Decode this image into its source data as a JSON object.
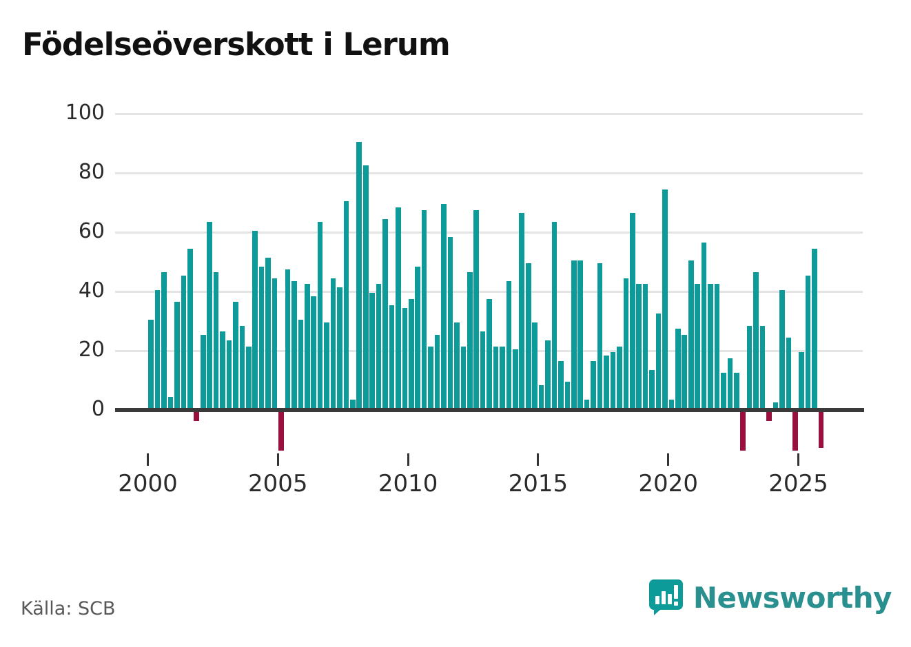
{
  "title": "Födelseöverskott i Lerum",
  "source": "Källa: SCB",
  "logo": {
    "text": "Newsworthy"
  },
  "colors": {
    "positive_bar": "#0c9b99",
    "negative_bar": "#990f3d",
    "logo_teal": "#2a8f8f",
    "grid": "#e4e4e4",
    "zero_line": "#3a3a3a"
  },
  "chart_data": {
    "type": "bar",
    "title": "Födelseöverskott i Lerum",
    "xlabel": "",
    "ylabel": "",
    "frequency": "quarterly",
    "start": "2000Q1",
    "end": "2025Q4",
    "x_tick_labels": [
      "2000",
      "2005",
      "2010",
      "2015",
      "2020",
      "2025"
    ],
    "y_ticks": [
      0,
      20,
      40,
      60,
      80,
      100
    ],
    "ylim": [
      -15,
      100
    ],
    "grid": "horizontal",
    "values": [
      30,
      40,
      46,
      4,
      36,
      45,
      54,
      -3,
      25,
      63,
      46,
      26,
      23,
      36,
      28,
      21,
      60,
      48,
      51,
      44,
      -13,
      47,
      43,
      30,
      42,
      38,
      63,
      29,
      44,
      41,
      70,
      3,
      90,
      82,
      39,
      42,
      64,
      35,
      68,
      34,
      37,
      48,
      67,
      21,
      25,
      69,
      58,
      29,
      21,
      46,
      67,
      26,
      37,
      21,
      21,
      43,
      20,
      66,
      49,
      29,
      8,
      23,
      63,
      16,
      9,
      50,
      50,
      3,
      16,
      49,
      18,
      19,
      21,
      44,
      66,
      42,
      42,
      13,
      32,
      74,
      3,
      27,
      25,
      50,
      42,
      56,
      42,
      42,
      12,
      17,
      12,
      -13,
      28,
      46,
      28,
      -3,
      2,
      40,
      24,
      -13,
      19,
      45,
      54,
      -12
    ]
  }
}
